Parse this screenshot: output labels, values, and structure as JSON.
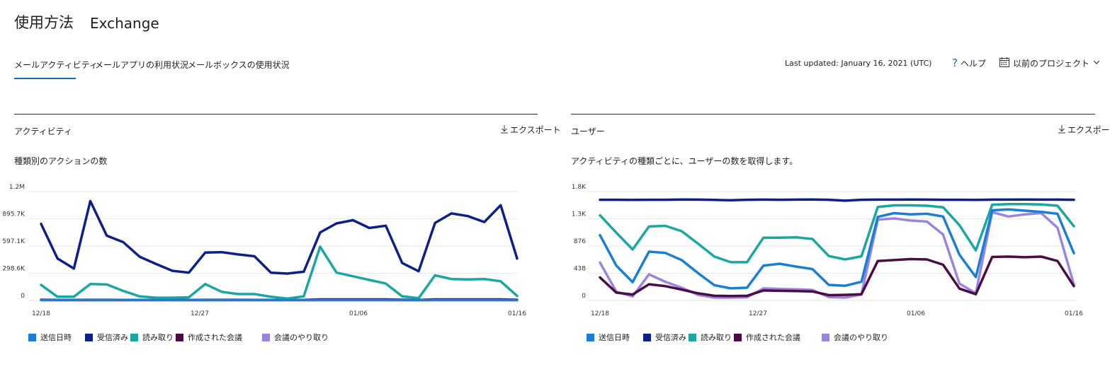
{
  "header": {
    "title": "使用方法",
    "subtitle": "Exchange"
  },
  "tabs": [
    {
      "label": "メールアクティビティ",
      "active": true
    },
    {
      "label": "メールアプリの利用状況",
      "active": false
    },
    {
      "label": "メールボックスの使用状況",
      "active": false
    }
  ],
  "toolbar": {
    "last_updated": "Last updated: January 16, 2021 (UTC)",
    "help_label": "ヘルプ",
    "periods_label": "以前のプロジェクト"
  },
  "colors": {
    "sent": "#1a7fd4",
    "received": "#0c1f8a",
    "read": "#1aa7a1",
    "meetings_created": "#4b0b45",
    "meeting_interactions": "#9b84de",
    "accent": "#0f6cbd"
  },
  "cards": [
    {
      "title": "アクティビティ",
      "export_label": "エクスポート",
      "subtitle": "種類別のアクションの数"
    },
    {
      "title": "ユーザー",
      "export_label": "エクスポート",
      "subtitle": "アクティビティの種類ごとに、ユーザーの数を取得します。"
    }
  ],
  "chart_data": [
    {
      "type": "line",
      "y_tick_labels": [
        "0",
        "298.6K",
        "597.1K",
        "895.7K",
        "1.2M"
      ],
      "x_tick_labels": [
        "12/18",
        "12/27",
        "01/06",
        "01/16"
      ],
      "ylim": [
        0,
        1194300
      ],
      "grid": true,
      "legend_position": "bottom-left",
      "series": [
        {
          "name": "送信日時",
          "color": "#1a7fd4",
          "values": [
            5000,
            5000,
            5000,
            5000,
            5000,
            5000,
            5000,
            5000,
            5000,
            5000,
            5000,
            5000,
            5000,
            5000,
            5000,
            5000,
            5000,
            5000,
            5000,
            5000,
            5000,
            5000,
            5000,
            5000,
            5000,
            5000,
            5000,
            5000,
            5000,
            5000
          ]
        },
        {
          "name": "受信済み",
          "color": "#0c1f8a",
          "values": [
            840000,
            460000,
            350000,
            1090000,
            710000,
            640000,
            480000,
            400000,
            325000,
            305000,
            525000,
            530000,
            505000,
            485000,
            305000,
            295000,
            315000,
            745000,
            845000,
            880000,
            795000,
            820000,
            410000,
            320000,
            850000,
            955000,
            925000,
            860000,
            1045000,
            460000
          ]
        },
        {
          "name": "読み取り",
          "color": "#1aa7a1",
          "values": [
            170000,
            40000,
            40000,
            180000,
            175000,
            105000,
            45000,
            30000,
            30000,
            35000,
            180000,
            95000,
            70000,
            70000,
            40000,
            20000,
            45000,
            590000,
            305000,
            265000,
            225000,
            185000,
            45000,
            25000,
            275000,
            235000,
            230000,
            235000,
            210000,
            50000
          ]
        },
        {
          "name": "作成された会議",
          "color": "#4b0b45",
          "values": [
            8000,
            6000,
            6000,
            7000,
            7000,
            6000,
            6000,
            6000,
            6000,
            6000,
            7000,
            7000,
            7000,
            6000,
            6000,
            6000,
            6000,
            12000,
            12000,
            12000,
            12000,
            12000,
            8000,
            6000,
            12000,
            12000,
            12000,
            12000,
            12000,
            8000
          ]
        },
        {
          "name": "会議のやり取り",
          "color": "#9b84de",
          "values": [
            3000,
            2000,
            2000,
            2000,
            2000,
            2000,
            2000,
            2000,
            2000,
            2000,
            2000,
            2000,
            2000,
            2000,
            2000,
            2000,
            2000,
            3000,
            3000,
            3000,
            3000,
            3000,
            2000,
            2000,
            3000,
            3000,
            3000,
            3000,
            3000,
            2000
          ]
        }
      ]
    },
    {
      "type": "line",
      "y_tick_labels": [
        "0",
        "438",
        "876",
        "1.3K",
        "1.8K"
      ],
      "x_tick_labels": [
        "12/18",
        "12/27",
        "01/06",
        "01/16"
      ],
      "ylim": [
        0,
        1752
      ],
      "grid": true,
      "legend_position": "bottom-left",
      "series": [
        {
          "name": "送信日時",
          "color": "#1a7fd4",
          "values": [
            1050,
            560,
            295,
            785,
            765,
            650,
            440,
            245,
            195,
            205,
            560,
            590,
            545,
            505,
            250,
            235,
            300,
            1345,
            1405,
            1385,
            1395,
            1350,
            735,
            375,
            1450,
            1465,
            1445,
            1425,
            1395,
            760
          ]
        },
        {
          "name": "受信済み",
          "color": "#0c1f8a",
          "values": [
            1620,
            1620,
            1618,
            1620,
            1620,
            1625,
            1622,
            1618,
            1612,
            1620,
            1622,
            1620,
            1622,
            1625,
            1620,
            1605,
            1620,
            1622,
            1622,
            1625,
            1622,
            1620,
            1620,
            1618,
            1622,
            1622,
            1625,
            1622,
            1622,
            1620
          ]
        },
        {
          "name": "読み取り",
          "color": "#1aa7a1",
          "values": [
            1370,
            1090,
            820,
            1190,
            1200,
            1115,
            915,
            705,
            615,
            615,
            1010,
            1010,
            1015,
            990,
            715,
            660,
            710,
            1505,
            1530,
            1530,
            1525,
            1500,
            1210,
            805,
            1540,
            1550,
            1550,
            1545,
            1525,
            1195
          ]
        },
        {
          "name": "作成された会議",
          "color": "#4b0b45",
          "values": [
            370,
            125,
            95,
            260,
            230,
            175,
            115,
            75,
            70,
            75,
            160,
            155,
            150,
            145,
            85,
            90,
            100,
            635,
            650,
            665,
            660,
            575,
            190,
            100,
            700,
            705,
            695,
            705,
            635,
            230
          ]
        },
        {
          "name": "会議のやり取り",
          "color": "#9b84de",
          "values": [
            610,
            140,
            65,
            420,
            300,
            205,
            90,
            45,
            45,
            50,
            195,
            185,
            180,
            170,
            55,
            45,
            95,
            1300,
            1320,
            1285,
            1270,
            1060,
            270,
            115,
            1420,
            1350,
            1385,
            1405,
            1170,
            255
          ]
        }
      ]
    }
  ]
}
